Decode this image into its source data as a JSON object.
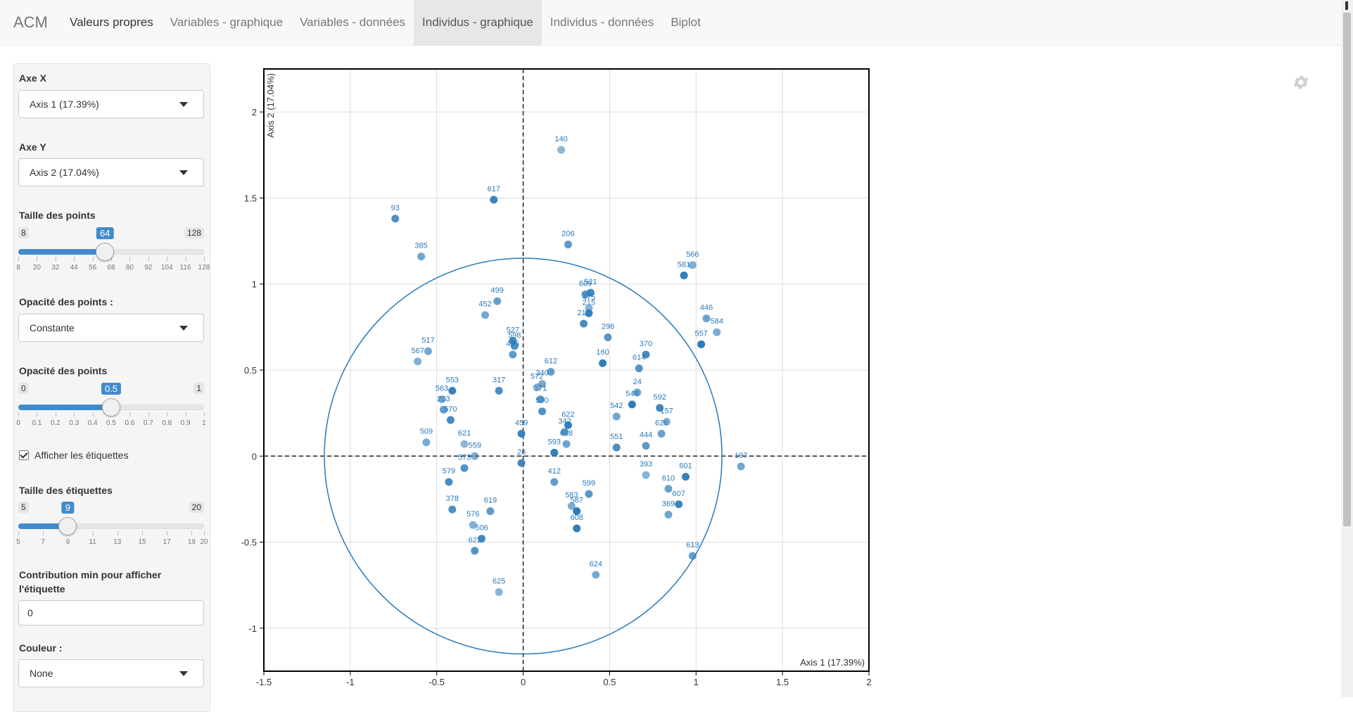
{
  "navbar": {
    "brand": "ACM",
    "tabs": [
      {
        "label": "Valeurs propres"
      },
      {
        "label": "Variables - graphique"
      },
      {
        "label": "Variables - données"
      },
      {
        "label": "Individus - graphique"
      },
      {
        "label": "Individus - données"
      },
      {
        "label": "Biplot"
      }
    ],
    "active_tab": "Individus - graphique"
  },
  "sidebar": {
    "axe_x": {
      "label": "Axe X",
      "value": "Axis 1 (17.39%)"
    },
    "axe_y": {
      "label": "Axe Y",
      "value": "Axis 2 (17.04%)"
    },
    "taille_points": {
      "label": "Taille des points",
      "min": 8,
      "max": 128,
      "value": 64,
      "ticks": [
        "8",
        "20",
        "32",
        "44",
        "56",
        "68",
        "80",
        "92",
        "104",
        "116",
        "128"
      ]
    },
    "opacite_mode": {
      "label": "Opacité des points :",
      "value": "Constante"
    },
    "opacite": {
      "label": "Opacité des points",
      "min": 0,
      "max": 1,
      "value": 0.5,
      "ticks": [
        "0",
        "0.1",
        "0.2",
        "0.3",
        "0.4",
        "0.5",
        "0.6",
        "0.7",
        "0.8",
        "0.9",
        "1"
      ]
    },
    "afficher_etiquettes": {
      "label": "Afficher les étiquettes",
      "checked": true
    },
    "taille_etiquettes": {
      "label": "Taille des étiquettes",
      "min": 5,
      "max": 20,
      "value": 9,
      "ticks": [
        "5",
        "7",
        "9",
        "11",
        "13",
        "15",
        "17",
        "19",
        "20"
      ]
    },
    "contribution_min": {
      "label_line1": "Contribution min pour afficher",
      "label_line2": "l'étiquette",
      "value": "0"
    },
    "couleur": {
      "label": "Couleur :",
      "value": "None"
    }
  },
  "colors": {
    "point": "#2a7ab8",
    "circle": "#2a7ab8",
    "label": "#2a7ab8",
    "slider": "#428bca"
  },
  "icons": {
    "settings": "gear-icon",
    "dropdown": "caret-down-icon"
  },
  "chart_data": {
    "type": "scatter",
    "xlabel": "Axis 1 (17.39%)",
    "ylabel": "Axis 2 (17.04%)",
    "xlim": [
      -1.5,
      2.0
    ],
    "ylim": [
      -1.25,
      2.25
    ],
    "xticks": [
      -1.5,
      -1,
      -0.5,
      0,
      0.5,
      1,
      1.5,
      2
    ],
    "yticks": [
      -1,
      -0.5,
      0,
      0.5,
      1,
      1.5,
      2
    ],
    "grid": true,
    "reference_circle_radius": 1.15,
    "points": [
      {
        "label": "140",
        "x": 0.22,
        "y": 1.78
      },
      {
        "label": "617",
        "x": -0.17,
        "y": 1.49
      },
      {
        "label": "93",
        "x": -0.74,
        "y": 1.38
      },
      {
        "label": "206",
        "x": 0.26,
        "y": 1.23
      },
      {
        "label": "385",
        "x": -0.59,
        "y": 1.16
      },
      {
        "label": "566",
        "x": 0.98,
        "y": 1.11
      },
      {
        "label": "581",
        "x": 0.93,
        "y": 1.05
      },
      {
        "label": "521",
        "x": 0.39,
        "y": 0.95
      },
      {
        "label": "609",
        "x": 0.36,
        "y": 0.94
      },
      {
        "label": "499",
        "x": -0.15,
        "y": 0.9
      },
      {
        "label": "452",
        "x": -0.22,
        "y": 0.82
      },
      {
        "label": "475",
        "x": 0.38,
        "y": 0.86
      },
      {
        "label": "215",
        "x": 0.38,
        "y": 0.83
      },
      {
        "label": "210",
        "x": 0.35,
        "y": 0.77
      },
      {
        "label": "296",
        "x": 0.49,
        "y": 0.69
      },
      {
        "label": "446",
        "x": 1.06,
        "y": 0.8
      },
      {
        "label": "584",
        "x": 1.12,
        "y": 0.72
      },
      {
        "label": "557",
        "x": 1.03,
        "y": 0.65
      },
      {
        "label": "527",
        "x": -0.06,
        "y": 0.67
      },
      {
        "label": "598",
        "x": -0.05,
        "y": 0.64
      },
      {
        "label": "415",
        "x": -0.06,
        "y": 0.59
      },
      {
        "label": "517",
        "x": -0.55,
        "y": 0.61
      },
      {
        "label": "567",
        "x": -0.61,
        "y": 0.55
      },
      {
        "label": "160",
        "x": 0.46,
        "y": 0.54
      },
      {
        "label": "370",
        "x": 0.71,
        "y": 0.59
      },
      {
        "label": "614",
        "x": 0.67,
        "y": 0.51
      },
      {
        "label": "612",
        "x": 0.16,
        "y": 0.49
      },
      {
        "label": "340",
        "x": 0.11,
        "y": 0.42
      },
      {
        "label": "572",
        "x": 0.08,
        "y": 0.4
      },
      {
        "label": "553",
        "x": -0.41,
        "y": 0.38
      },
      {
        "label": "317",
        "x": -0.14,
        "y": 0.38
      },
      {
        "label": "371",
        "x": 0.1,
        "y": 0.33
      },
      {
        "label": "24",
        "x": 0.66,
        "y": 0.37
      },
      {
        "label": "563",
        "x": -0.47,
        "y": 0.33
      },
      {
        "label": "548",
        "x": 0.63,
        "y": 0.3
      },
      {
        "label": "592",
        "x": 0.79,
        "y": 0.28
      },
      {
        "label": "590",
        "x": 0.11,
        "y": 0.26
      },
      {
        "label": "203",
        "x": -0.46,
        "y": 0.27
      },
      {
        "label": "542",
        "x": 0.54,
        "y": 0.23
      },
      {
        "label": "157",
        "x": 0.83,
        "y": 0.2
      },
      {
        "label": "622",
        "x": 0.26,
        "y": 0.18
      },
      {
        "label": "570",
        "x": -0.42,
        "y": 0.21
      },
      {
        "label": "342",
        "x": 0.24,
        "y": 0.14
      },
      {
        "label": "626",
        "x": 0.8,
        "y": 0.13
      },
      {
        "label": "509",
        "x": -0.56,
        "y": 0.08
      },
      {
        "label": "621",
        "x": -0.34,
        "y": 0.07
      },
      {
        "label": "459",
        "x": -0.01,
        "y": 0.13
      },
      {
        "label": "551",
        "x": 0.54,
        "y": 0.05
      },
      {
        "label": "444",
        "x": 0.71,
        "y": 0.06
      },
      {
        "label": "618",
        "x": 0.25,
        "y": 0.07
      },
      {
        "label": "559",
        "x": -0.28,
        "y": 0.0
      },
      {
        "label": "593",
        "x": 0.18,
        "y": 0.02
      },
      {
        "label": "26",
        "x": -0.01,
        "y": -0.04
      },
      {
        "label": "573",
        "x": -0.34,
        "y": -0.07
      },
      {
        "label": "412",
        "x": 0.18,
        "y": -0.15
      },
      {
        "label": "197",
        "x": 1.26,
        "y": -0.06
      },
      {
        "label": "393",
        "x": 0.71,
        "y": -0.11
      },
      {
        "label": "601",
        "x": 0.94,
        "y": -0.12
      },
      {
        "label": "579",
        "x": -0.43,
        "y": -0.15
      },
      {
        "label": "599",
        "x": 0.38,
        "y": -0.22
      },
      {
        "label": "610",
        "x": 0.84,
        "y": -0.19
      },
      {
        "label": "583",
        "x": 0.28,
        "y": -0.29
      },
      {
        "label": "587",
        "x": 0.31,
        "y": -0.32
      },
      {
        "label": "607",
        "x": 0.9,
        "y": -0.28
      },
      {
        "label": "378",
        "x": -0.41,
        "y": -0.31
      },
      {
        "label": "619",
        "x": -0.19,
        "y": -0.32
      },
      {
        "label": "369",
        "x": 0.84,
        "y": -0.34
      },
      {
        "label": "576",
        "x": -0.29,
        "y": -0.4
      },
      {
        "label": "608",
        "x": 0.31,
        "y": -0.42
      },
      {
        "label": "506",
        "x": -0.24,
        "y": -0.48
      },
      {
        "label": "623",
        "x": -0.28,
        "y": -0.55
      },
      {
        "label": "613",
        "x": 0.98,
        "y": -0.58
      },
      {
        "label": "624",
        "x": 0.42,
        "y": -0.69
      },
      {
        "label": "625",
        "x": -0.14,
        "y": -0.79
      }
    ]
  }
}
